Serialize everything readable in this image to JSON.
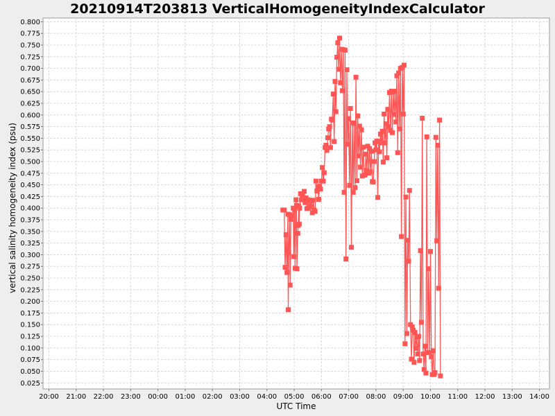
{
  "chart_data": {
    "type": "line",
    "title": "20210914T203813 VerticalHomogeneityIndexCalculator",
    "xlabel": "UTC Time",
    "ylabel": "vertical salinity homogeneity index (psu)",
    "x_tick_labels": [
      "20:00",
      "21:00",
      "22:00",
      "23:00",
      "00:00",
      "01:00",
      "02:00",
      "03:00",
      "04:00",
      "05:00",
      "06:00",
      "07:00",
      "08:00",
      "09:00",
      "10:00",
      "11:00",
      "12:00",
      "13:00",
      "14:00"
    ],
    "y_tick_labels": [
      "0.025",
      "0.050",
      "0.075",
      "0.100",
      "0.125",
      "0.150",
      "0.175",
      "0.200",
      "0.225",
      "0.250",
      "0.275",
      "0.300",
      "0.325",
      "0.350",
      "0.375",
      "0.400",
      "0.425",
      "0.450",
      "0.475",
      "0.500",
      "0.525",
      "0.550",
      "0.575",
      "0.600",
      "0.625",
      "0.650",
      "0.675",
      "0.700",
      "0.725",
      "0.750",
      "0.775",
      "0.800"
    ],
    "x_range": [
      "19:47",
      "14:22"
    ],
    "ylim": [
      0.012,
      0.808
    ],
    "grid": true,
    "legend": "none",
    "marker": "square",
    "series": [
      {
        "color": "#ff5555",
        "points": [
          [
            "04:35",
            0.396
          ],
          [
            "04:38",
            0.396
          ],
          [
            "04:40",
            0.273
          ],
          [
            "04:42",
            0.343
          ],
          [
            "04:44",
            0.262
          ],
          [
            "04:46",
            0.387
          ],
          [
            "04:47",
            0.182
          ],
          [
            "04:48",
            0.305
          ],
          [
            "04:50",
            0.386
          ],
          [
            "04:51",
            0.235
          ],
          [
            "04:53",
            0.376
          ],
          [
            "04:55",
            0.384
          ],
          [
            "04:57",
            0.384
          ],
          [
            "04:58",
            0.4
          ],
          [
            "04:59",
            0.296
          ],
          [
            "05:01",
            0.396
          ],
          [
            "05:02",
            0.271
          ],
          [
            "05:04",
            0.418
          ],
          [
            "05:05",
            0.406
          ],
          [
            "05:06",
            0.27
          ],
          [
            "05:08",
            0.346
          ],
          [
            "05:09",
            0.363
          ],
          [
            "05:10",
            0.405
          ],
          [
            "05:11",
            0.366
          ],
          [
            "05:12",
            0.4
          ],
          [
            "05:14",
            0.431
          ],
          [
            "05:16",
            0.418
          ],
          [
            "05:18",
            0.43
          ],
          [
            "05:20",
            0.423
          ],
          [
            "05:22",
            0.436
          ],
          [
            "05:24",
            0.412
          ],
          [
            "05:26",
            0.422
          ],
          [
            "05:28",
            0.399
          ],
          [
            "05:30",
            0.418
          ],
          [
            "05:32",
            0.4
          ],
          [
            "05:34",
            0.417
          ],
          [
            "05:36",
            0.403
          ],
          [
            "05:38",
            0.416
          ],
          [
            "05:40",
            0.39
          ],
          [
            "05:42",
            0.417
          ],
          [
            "05:44",
            0.396
          ],
          [
            "05:46",
            0.393
          ],
          [
            "05:48",
            0.458
          ],
          [
            "05:50",
            0.437
          ],
          [
            "05:52",
            0.445
          ],
          [
            "05:54",
            0.419
          ],
          [
            "05:56",
            0.447
          ],
          [
            "05:58",
            0.441
          ],
          [
            "06:00",
            0.458
          ],
          [
            "06:02",
            0.487
          ],
          [
            "06:04",
            0.458
          ],
          [
            "06:06",
            0.476
          ],
          [
            "06:08",
            0.53
          ],
          [
            "06:10",
            0.535
          ],
          [
            "06:12",
            0.524
          ],
          [
            "06:14",
            0.551
          ],
          [
            "06:16",
            0.57
          ],
          [
            "06:18",
            0.575
          ],
          [
            "06:20",
            0.53
          ],
          [
            "06:22",
            0.591
          ],
          [
            "06:24",
            0.589
          ],
          [
            "06:26",
            0.645
          ],
          [
            "06:28",
            0.543
          ],
          [
            "06:30",
            0.672
          ],
          [
            "06:32",
            0.607
          ],
          [
            "06:34",
            0.724
          ],
          [
            "06:36",
            0.755
          ],
          [
            "06:38",
            0.698
          ],
          [
            "06:40",
            0.765
          ],
          [
            "06:42",
            0.669
          ],
          [
            "06:44",
            0.741
          ],
          [
            "06:46",
            0.652
          ],
          [
            "06:48",
            0.74
          ],
          [
            "06:50",
            0.434
          ],
          [
            "06:52",
            0.739
          ],
          [
            "06:54",
            0.291
          ],
          [
            "06:56",
            0.697
          ],
          [
            "06:58",
            0.537
          ],
          [
            "07:00",
            0.592
          ],
          [
            "07:02",
            0.449
          ],
          [
            "07:04",
            0.614
          ],
          [
            "07:06",
            0.316
          ],
          [
            "07:08",
            0.583
          ],
          [
            "07:10",
            0.434
          ],
          [
            "07:12",
            0.582
          ],
          [
            "07:14",
            0.444
          ],
          [
            "07:16",
            0.681
          ],
          [
            "07:18",
            0.459
          ],
          [
            "07:20",
            0.598
          ],
          [
            "07:22",
            0.512
          ],
          [
            "07:24",
            0.576
          ],
          [
            "07:26",
            0.488
          ],
          [
            "07:28",
            0.568
          ],
          [
            "07:30",
            0.469
          ],
          [
            "07:32",
            0.531
          ],
          [
            "07:34",
            0.471
          ],
          [
            "07:36",
            0.471
          ],
          [
            "07:38",
            0.516
          ],
          [
            "07:40",
            0.481
          ],
          [
            "07:42",
            0.533
          ],
          [
            "07:44",
            0.475
          ],
          [
            "07:46",
            0.528
          ],
          [
            "07:48",
            0.478
          ],
          [
            "07:50",
            0.522
          ],
          [
            "07:52",
            0.457
          ],
          [
            "07:54",
            0.456
          ],
          [
            "07:56",
            0.5
          ],
          [
            "07:58",
            0.54
          ],
          [
            "08:00",
            0.525
          ],
          [
            "08:02",
            0.544
          ],
          [
            "08:04",
            0.423
          ],
          [
            "08:06",
            0.543
          ],
          [
            "08:08",
            0.521
          ],
          [
            "08:10",
            0.559
          ],
          [
            "08:12",
            0.54
          ],
          [
            "08:14",
            0.565
          ],
          [
            "08:16",
            0.499
          ],
          [
            "08:18",
            0.602
          ],
          [
            "08:20",
            0.54
          ],
          [
            "08:22",
            0.581
          ],
          [
            "08:24",
            0.508
          ],
          [
            "08:26",
            0.612
          ],
          [
            "08:28",
            0.575
          ],
          [
            "08:30",
            0.648
          ],
          [
            "08:32",
            0.567
          ],
          [
            "08:34",
            0.651
          ],
          [
            "08:36",
            0.562
          ],
          [
            "08:38",
            0.649
          ],
          [
            "08:40",
            0.601
          ],
          [
            "08:42",
            0.651
          ],
          [
            "08:44",
            0.585
          ],
          [
            "08:46",
            0.684
          ],
          [
            "08:48",
            0.519
          ],
          [
            "08:50",
            0.69
          ],
          [
            "08:52",
            0.57
          ],
          [
            "08:54",
            0.7
          ],
          [
            "08:56",
            0.339
          ],
          [
            "08:58",
            0.702
          ],
          [
            "09:00",
            0.602
          ],
          [
            "09:02",
            0.707
          ],
          [
            "09:04",
            0.109
          ],
          [
            "09:06",
            0.424
          ],
          [
            "09:08",
            0.131
          ],
          [
            "09:10",
            0.331
          ],
          [
            "09:12",
            0.286
          ],
          [
            "09:14",
            0.438
          ],
          [
            "09:16",
            0.15
          ],
          [
            "09:18",
            0.076
          ],
          [
            "09:20",
            0.145
          ],
          [
            "09:22",
            0.138
          ],
          [
            "09:24",
            0.069
          ],
          [
            "09:26",
            0.133
          ],
          [
            "09:28",
            0.099
          ],
          [
            "09:30",
            0.124
          ],
          [
            "09:32",
            0.087
          ],
          [
            "09:34",
            0.125
          ],
          [
            "09:36",
            0.073
          ],
          [
            "09:38",
            0.309
          ],
          [
            "09:40",
            0.155
          ],
          [
            "09:42",
            0.593
          ],
          [
            "09:44",
            0.087
          ],
          [
            "09:46",
            0.054
          ],
          [
            "09:48",
            0.104
          ],
          [
            "09:50",
            0.046
          ],
          [
            "09:52",
            0.553
          ],
          [
            "09:54",
            0.09
          ],
          [
            "09:56",
            0.27
          ],
          [
            "09:58",
            0.09
          ],
          [
            "10:00",
            0.307
          ],
          [
            "10:02",
            0.081
          ],
          [
            "10:04",
            0.043
          ],
          [
            "10:06",
            0.094
          ],
          [
            "10:08",
            0.043
          ],
          [
            "10:10",
            0.047
          ],
          [
            "10:12",
            0.552
          ],
          [
            "10:14",
            0.33
          ],
          [
            "10:16",
            0.535
          ],
          [
            "10:18",
            0.228
          ],
          [
            "10:20",
            0.589
          ],
          [
            "10:22",
            0.04
          ]
        ]
      }
    ]
  }
}
